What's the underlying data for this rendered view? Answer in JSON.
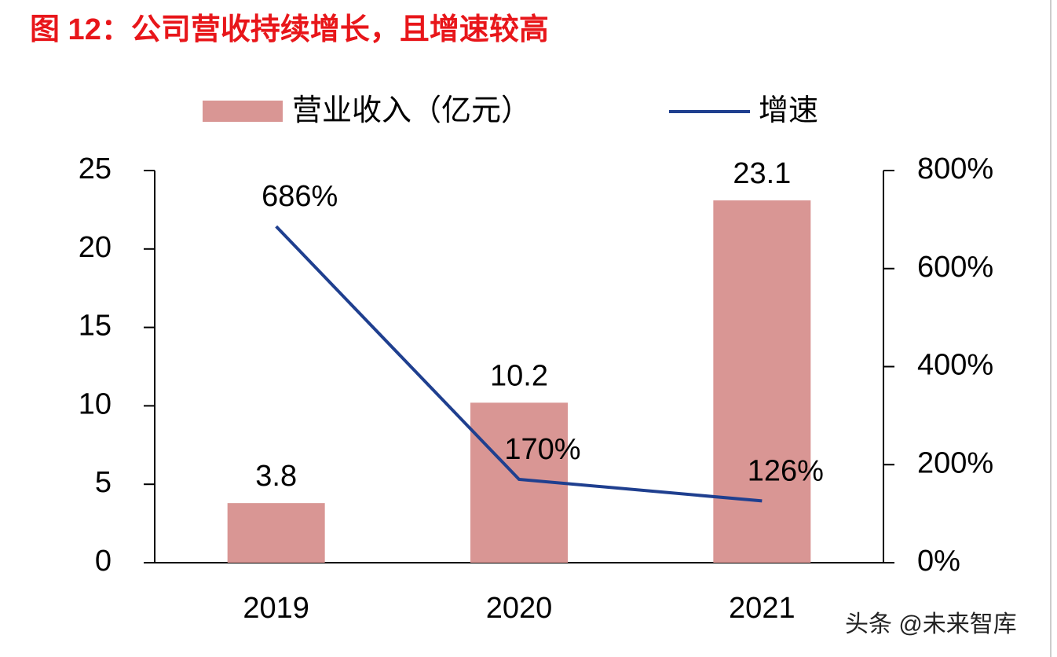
{
  "chart_data": {
    "type": "bar",
    "title": "图 12：公司营收持续增长，且增速较高",
    "categories": [
      "2019",
      "2020",
      "2021"
    ],
    "series": [
      {
        "name": "营业收入（亿元）",
        "color": "#d99694",
        "values": [
          3.8,
          10.2,
          23.1
        ]
      },
      {
        "name": "增速",
        "color": "#1f3f8f",
        "type": "line",
        "axis": "y2",
        "values": [
          686,
          170,
          126
        ],
        "value_labels": [
          "686%",
          "170%",
          "126%"
        ]
      }
    ],
    "ylim": [
      0,
      25
    ],
    "yticks": [
      0,
      5,
      10,
      15,
      20,
      25
    ],
    "y2lim": [
      0,
      800
    ],
    "y2ticks": [
      {
        "value": 0,
        "label": "0%"
      },
      {
        "value": 200,
        "label": "200%"
      },
      {
        "value": 400,
        "label": "400%"
      },
      {
        "value": 600,
        "label": "600%"
      },
      {
        "value": 800,
        "label": "800%"
      }
    ],
    "grid": false,
    "watermark": "头条 @未来智库"
  }
}
